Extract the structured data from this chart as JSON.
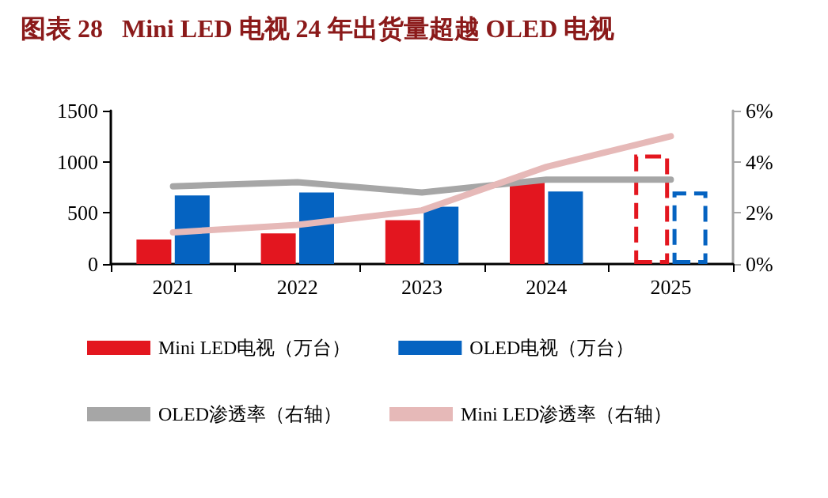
{
  "chart_data": {
    "type": "bar",
    "title": "图表 28   Mini LED 电视 24 年出货量超越 OLED 电视",
    "categories": [
      "2021",
      "2022",
      "2023",
      "2024",
      "2025"
    ],
    "series": [
      {
        "name": "Mini LED电视（万台）",
        "color": "#e3161f",
        "values": [
          240,
          300,
          430,
          820,
          null
        ]
      },
      {
        "name": "OLED电视（万台）",
        "color": "#0563c1",
        "values": [
          670,
          700,
          560,
          710,
          null
        ]
      },
      {
        "color": "#e3161f",
        "line_style": "dashed",
        "values": [
          null,
          null,
          null,
          null,
          1070
        ]
      },
      {
        "color": "#0563c1",
        "line_style": "dashed",
        "values": [
          null,
          null,
          null,
          null,
          710
        ]
      },
      {
        "name": "OLED渗透率（右轴）",
        "type": "line",
        "axis": "y2",
        "color": "#a6a6a6",
        "values": [
          3.04,
          3.2,
          2.8,
          3.3,
          3.3
        ]
      },
      {
        "name": "Mini LED渗透率（右轴）",
        "type": "line",
        "axis": "y2",
        "color": "#e6b9b8",
        "values": [
          1.24,
          1.53,
          2.1,
          3.8,
          5.0
        ]
      }
    ],
    "ylim": [
      0,
      1500
    ],
    "yticks": [
      0,
      500,
      1000,
      1500
    ],
    "y2lim": [
      0,
      6
    ],
    "y2ticks": [
      {
        "value": 0,
        "label": "0%"
      },
      {
        "value": 2,
        "label": "2%"
      },
      {
        "value": 4,
        "label": "4%"
      },
      {
        "value": 6,
        "label": "6%"
      }
    ],
    "grid": false,
    "legend": "bottom",
    "marker": "none"
  }
}
